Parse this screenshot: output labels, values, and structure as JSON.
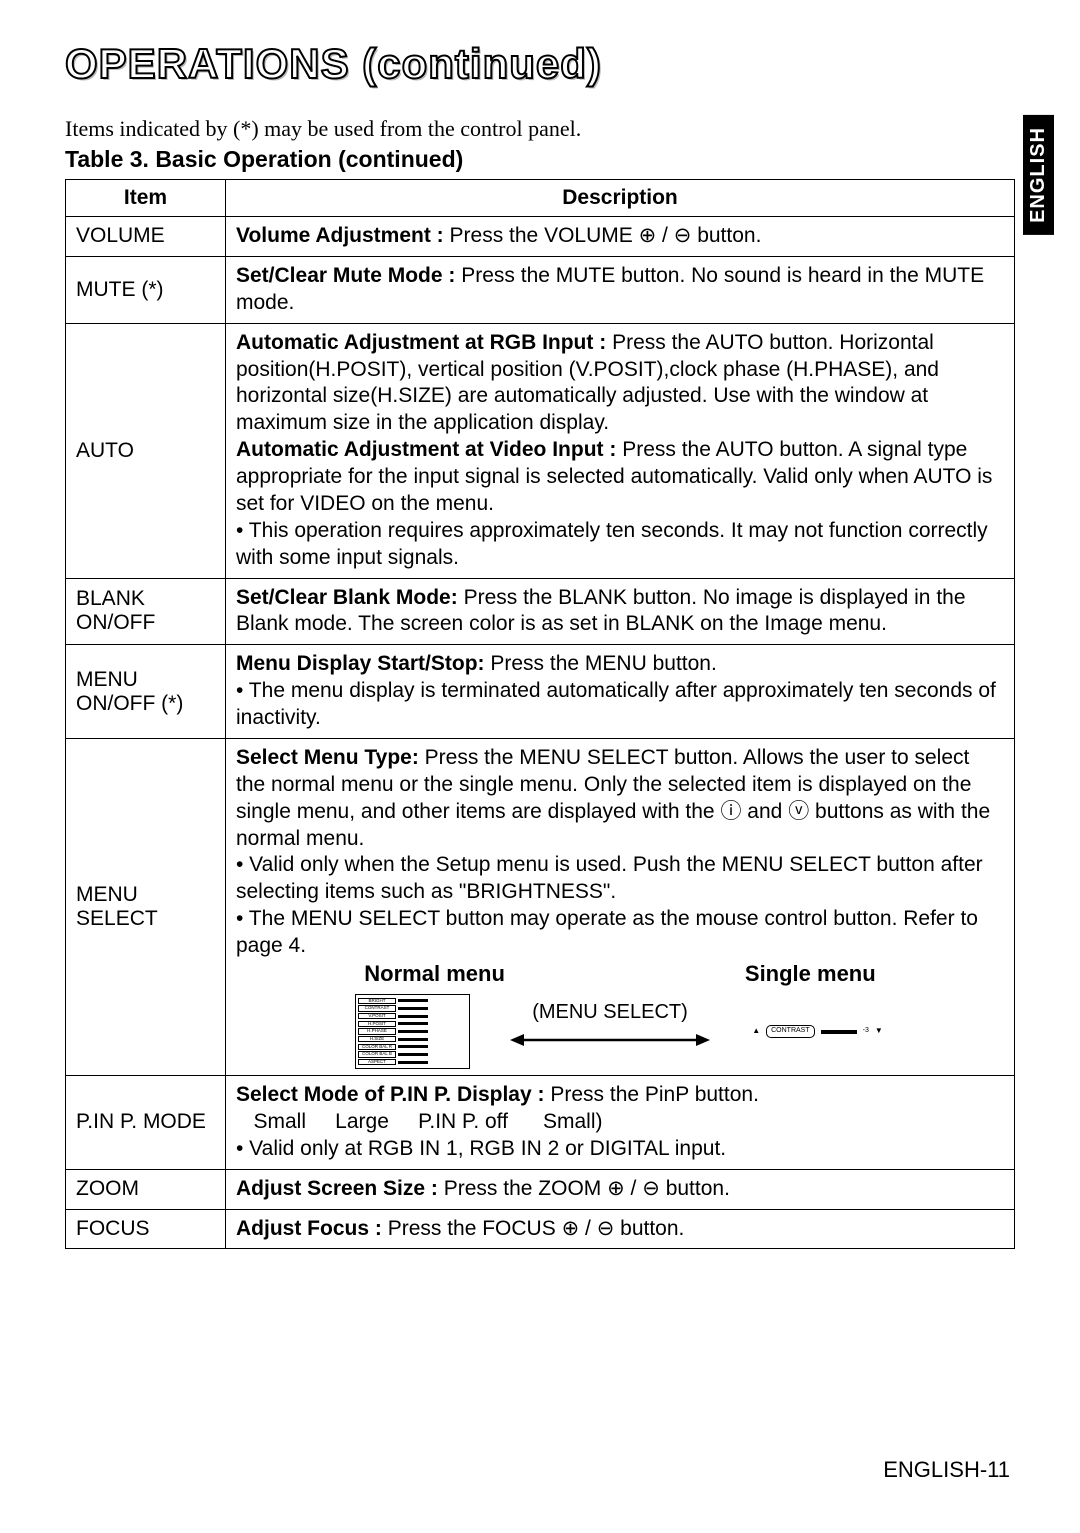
{
  "page_title_main": "OPERATIONS",
  "page_title_suffix": "(continued)",
  "intro_text": "Items indicated by (*) may be used from the control panel.",
  "table_caption": "Table 3. Basic Operation (continued)",
  "headers": {
    "item": "Item",
    "description": "Description"
  },
  "side_tab": "ENGLISH",
  "footer": "ENGLISH-11",
  "rows": {
    "volume": {
      "item": "VOLUME",
      "label": "Volume Adjustment :",
      "text": "Press the VOLUME",
      "tail": "button."
    },
    "mute": {
      "item": "MUTE (*)",
      "label": "Set/Clear Mute Mode :",
      "text": "Press the MUTE button. No sound is heard in the MUTE mode."
    },
    "auto": {
      "item": "AUTO",
      "label1": "Automatic Adjustment at RGB Input :",
      "text1": "Press the AUTO button. Horizontal position(H.POSIT), vertical position (V.POSIT),clock phase (H.PHASE), and horizontal size(H.SIZE) are automatically adjusted. Use with the window at maximum size in the application display.",
      "label2": "Automatic Adjustment at Video Input :",
      "text2": "Press the AUTO button. A signal type appropriate for the input signal is selected automatically. Valid only when AUTO is set for VIDEO on the menu.",
      "note": "• This operation requires approximately ten seconds. It may not function correctly with some input signals."
    },
    "blank": {
      "item": "BLANK ON/OFF",
      "label": "Set/Clear Blank Mode:",
      "text": "Press the BLANK button. No image is displayed in the Blank mode. The screen color is as set in BLANK on the Image menu."
    },
    "menu_onoff": {
      "item": "MENU ON/OFF (*)",
      "label": "Menu Display Start/Stop:",
      "text": "Press the MENU button.",
      "note": "• The menu display is terminated automatically after approximately ten seconds of inactivity."
    },
    "menu_select": {
      "item": "MENU SELECT",
      "label": "Select Menu Type:",
      "text1": "Press the MENU SELECT button. Allows the user to select the normal menu or the single menu. Only the selected item is displayed on the single menu, and other items are displayed with the",
      "text2": "and",
      "text3": "buttons as with the normal menu.",
      "note1": "• Valid only when the Setup menu is used. Push the MENU SELECT button after selecting items such as \"BRIGHTNESS\".",
      "note2": "• The MENU SELECT button may operate as the mouse control button. Refer to page 4.",
      "heading_left": "Normal menu",
      "heading_right": "Single menu",
      "arrow_label": "(MENU SELECT)",
      "nm_items": [
        "BRIGHT",
        "CONTRAST",
        "V.POSIT",
        "H.POSIT",
        "H.PHASE",
        "H.SIZE",
        "COLOR BAL R",
        "COLOR BAL B",
        "ASPECT"
      ],
      "single_label": "CONTRAST"
    },
    "pinp": {
      "item": "P.IN P. MODE",
      "label": "Select Mode of P.IN P. Display :",
      "text": "Press the PinP button.",
      "seq": "   Small     Large     P.IN P. off      Small)",
      "note": "• Valid only at RGB IN 1, RGB IN 2 or DIGITAL input."
    },
    "zoom": {
      "item": "ZOOM",
      "label": "Adjust Screen Size :",
      "text": "Press the ZOOM",
      "tail": "button."
    },
    "focus": {
      "item": "FOCUS",
      "label": "Adjust Focus :",
      "text": "Press the FOCUS",
      "tail": "button."
    }
  },
  "colors": {
    "text": "#000000",
    "bg": "#ffffff",
    "border": "#000000",
    "tab_bg": "#000000",
    "tab_fg": "#ffffff"
  }
}
